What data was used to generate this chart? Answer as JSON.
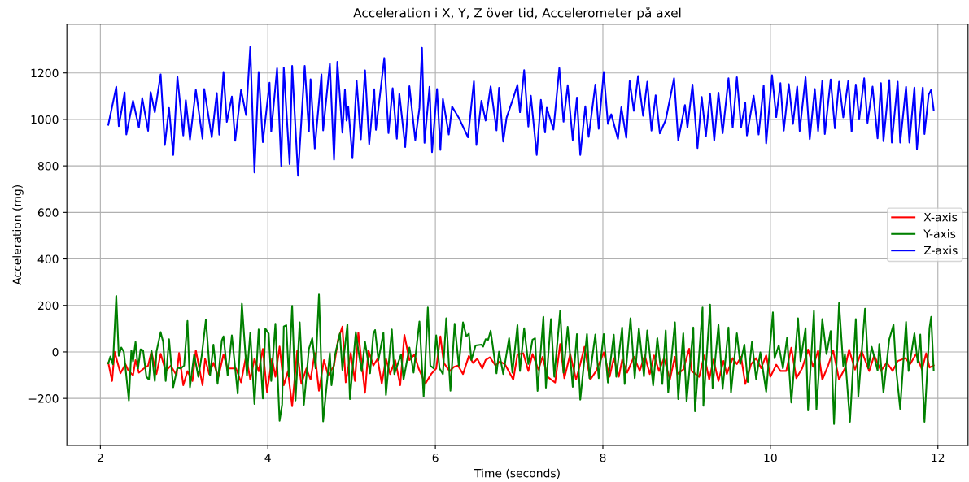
{
  "chart_data": {
    "type": "line",
    "title": "Acceleration i X, Y, Z över tid, Accelerometer på axel",
    "xlabel": "Time (seconds)",
    "ylabel": "Acceleration (mg)",
    "xlim": [
      1.6,
      12.36
    ],
    "ylim": [
      -402,
      1410
    ],
    "xticks": [
      2,
      4,
      6,
      8,
      10,
      12
    ],
    "yticks": [
      {
        "value": -200,
        "label": "−200"
      },
      0,
      200,
      400,
      600,
      800,
      1000,
      1200
    ],
    "grid": true,
    "legend": "right",
    "marker": "none",
    "line_style": "solid",
    "series": [
      {
        "name": "X-axis",
        "color": "#ff0000",
        "x": [
          2.095,
          2.14,
          2.17,
          2.24,
          2.3,
          2.33,
          2.39,
          2.42,
          2.46,
          2.52,
          2.57,
          2.61,
          2.67,
          2.72,
          2.78,
          2.84,
          2.91,
          2.94,
          2.99,
          3.04,
          3.1,
          3.14,
          3.22,
          3.25,
          3.3,
          3.35,
          3.41,
          3.47,
          3.52,
          3.62,
          3.68,
          3.74,
          3.79,
          3.84,
          3.89,
          3.94,
          3.99,
          4.05,
          4.09,
          4.14,
          4.19,
          4.24,
          4.29,
          4.35,
          4.4,
          4.46,
          4.51,
          4.56,
          4.61,
          4.67,
          4.72,
          4.79,
          4.84,
          4.89,
          4.93,
          4.99,
          5.04,
          5.08,
          5.16,
          5.2,
          5.26,
          5.31,
          5.36,
          5.41,
          5.46,
          5.52,
          5.58,
          5.63,
          5.69,
          5.75,
          5.8,
          5.88,
          5.95,
          6.01,
          6.06,
          6.1,
          6.17,
          6.22,
          6.27,
          6.33,
          6.4,
          6.45,
          6.5,
          6.56,
          6.6,
          6.65,
          6.72,
          6.77,
          6.83,
          6.93,
          6.98,
          7.05,
          7.11,
          7.16,
          7.23,
          7.28,
          7.34,
          7.43,
          7.49,
          7.54,
          7.61,
          7.68,
          7.73,
          7.78,
          7.85,
          7.92,
          8.01,
          8.08,
          8.13,
          8.19,
          8.23,
          8.29,
          8.37,
          8.44,
          8.5,
          8.56,
          8.61,
          8.67,
          8.73,
          8.8,
          8.86,
          8.89,
          8.96,
          9.03,
          9.06,
          9.15,
          9.21,
          9.27,
          9.32,
          9.38,
          9.44,
          9.48,
          9.55,
          9.6,
          9.65,
          9.7,
          9.77,
          9.83,
          9.89,
          9.95,
          10.0,
          10.07,
          10.12,
          10.19,
          10.25,
          10.31,
          10.38,
          10.45,
          10.51,
          10.57,
          10.62,
          10.69,
          10.75,
          10.82,
          10.89,
          10.94,
          11.01,
          11.09,
          11.18,
          11.24,
          11.32,
          11.39,
          11.46,
          11.52,
          11.61,
          11.67,
          11.74,
          11.81,
          11.86,
          11.9,
          11.95
        ],
        "values": [
          -47,
          -125,
          1,
          -92,
          -53,
          -77,
          -101,
          -35,
          -89,
          -71,
          -59,
          1,
          -95,
          -8,
          -83,
          -59,
          -101,
          -5,
          -143,
          -83,
          -125,
          7,
          -143,
          -29,
          -95,
          -47,
          -107,
          -11,
          -71,
          -71,
          -131,
          -17,
          -119,
          -29,
          -83,
          13,
          -173,
          -29,
          -107,
          23,
          -143,
          -83,
          -233,
          4,
          -137,
          -71,
          -119,
          -5,
          -167,
          -35,
          -101,
          -59,
          55,
          109,
          -131,
          -5,
          -125,
          83,
          -176,
          7,
          -59,
          -29,
          -137,
          -29,
          -95,
          -35,
          -143,
          73,
          -35,
          -11,
          -71,
          -137,
          -95,
          -71,
          67,
          -47,
          -83,
          -65,
          -59,
          -95,
          -17,
          -47,
          -29,
          -71,
          -35,
          -23,
          -59,
          -41,
          -53,
          -119,
          -11,
          -6,
          -82,
          -9,
          -76,
          -21,
          -107,
          -132,
          34,
          -113,
          -9,
          -119,
          -52,
          22,
          -119,
          -82,
          -2,
          -107,
          -27,
          -107,
          -33,
          -89,
          -21,
          -82,
          -15,
          -95,
          -15,
          -82,
          -27,
          -119,
          -21,
          -95,
          -76,
          14,
          -82,
          -107,
          -15,
          -119,
          -33,
          -125,
          -39,
          -95,
          -27,
          -52,
          -21,
          -138,
          -52,
          -27,
          -70,
          -15,
          -107,
          -55,
          -82,
          -82,
          18,
          -113,
          -70,
          10,
          -64,
          6,
          -119,
          -58,
          6,
          -119,
          -70,
          10,
          -76,
          4,
          -82,
          -15,
          -82,
          -46,
          -82,
          -39,
          -27,
          -52,
          -9,
          -76,
          -6,
          -67,
          -58
        ]
      },
      {
        "name": "Y-axis",
        "color": "#008000",
        "x": [
          2.095,
          2.12,
          2.15,
          2.19,
          2.22,
          2.25,
          2.28,
          2.34,
          2.37,
          2.39,
          2.42,
          2.45,
          2.48,
          2.51,
          2.55,
          2.58,
          2.61,
          2.65,
          2.67,
          2.72,
          2.75,
          2.78,
          2.82,
          2.87,
          2.92,
          2.96,
          3.0,
          3.04,
          3.07,
          3.12,
          3.17,
          3.21,
          3.26,
          3.31,
          3.35,
          3.4,
          3.45,
          3.47,
          3.52,
          3.57,
          3.64,
          3.69,
          3.75,
          3.79,
          3.84,
          3.89,
          3.94,
          3.97,
          4.01,
          4.04,
          4.09,
          4.14,
          4.17,
          4.19,
          4.22,
          4.25,
          4.29,
          4.33,
          4.38,
          4.43,
          4.49,
          4.53,
          4.57,
          4.61,
          4.66,
          4.74,
          4.76,
          4.8,
          4.86,
          4.89,
          4.95,
          4.98,
          5.05,
          5.08,
          5.12,
          5.16,
          5.22,
          5.26,
          5.28,
          5.32,
          5.38,
          5.41,
          5.48,
          5.51,
          5.59,
          5.62,
          5.69,
          5.74,
          5.81,
          5.86,
          5.91,
          5.94,
          5.98,
          6.01,
          6.05,
          6.09,
          6.13,
          6.18,
          6.23,
          6.28,
          6.33,
          6.37,
          6.4,
          6.43,
          6.48,
          6.55,
          6.57,
          6.6,
          6.63,
          6.66,
          6.73,
          6.76,
          6.81,
          6.88,
          6.92,
          6.98,
          7.01,
          7.06,
          7.11,
          7.16,
          7.19,
          7.22,
          7.29,
          7.32,
          7.38,
          7.42,
          7.49,
          7.53,
          7.58,
          7.64,
          7.69,
          7.73,
          7.81,
          7.84,
          7.91,
          7.95,
          8.01,
          8.06,
          8.13,
          8.16,
          8.23,
          8.26,
          8.33,
          8.38,
          8.43,
          8.49,
          8.53,
          8.6,
          8.65,
          8.71,
          8.75,
          8.78,
          8.86,
          8.9,
          8.96,
          9.0,
          9.08,
          9.1,
          9.19,
          9.2,
          9.28,
          9.31,
          9.38,
          9.43,
          9.5,
          9.53,
          9.6,
          9.64,
          9.69,
          9.73,
          9.78,
          9.83,
          9.88,
          9.95,
          10.03,
          10.05,
          10.1,
          10.15,
          10.2,
          10.25,
          10.33,
          10.36,
          10.42,
          10.45,
          10.52,
          10.55,
          10.62,
          10.67,
          10.72,
          10.76,
          10.82,
          10.87,
          10.89,
          10.95,
          11.02,
          11.05,
          11.13,
          11.17,
          11.21,
          11.28,
          11.3,
          11.35,
          11.42,
          11.47,
          11.5,
          11.55,
          11.62,
          11.65,
          11.72,
          11.76,
          11.79,
          11.84,
          11.9,
          11.92,
          11.95
        ],
        "values": [
          -49,
          -20,
          -53,
          241,
          -17,
          19,
          1,
          -209,
          7,
          -41,
          43,
          -71,
          11,
          7,
          -107,
          -119,
          7,
          -125,
          1,
          85,
          43,
          -125,
          55,
          -152,
          -68,
          -71,
          -59,
          133,
          -152,
          -11,
          -107,
          -17,
          139,
          -101,
          31,
          -137,
          49,
          67,
          -101,
          71,
          -179,
          208,
          -101,
          83,
          -224,
          97,
          -200,
          100,
          79,
          -125,
          121,
          -296,
          -227,
          109,
          115,
          -107,
          198,
          -209,
          127,
          -227,
          13,
          59,
          -71,
          247,
          -299,
          -5,
          -143,
          -17,
          79,
          -77,
          119,
          -203,
          85,
          7,
          -83,
          43,
          -92,
          79,
          94,
          -35,
          83,
          -185,
          97,
          -95,
          -11,
          -119,
          19,
          -89,
          131,
          -191,
          191,
          -59,
          -71,
          71,
          -71,
          -95,
          145,
          -167,
          121,
          -59,
          127,
          67,
          79,
          -35,
          28,
          31,
          23,
          55,
          52,
          91,
          -92,
          1,
          -95,
          59,
          -89,
          115,
          -82,
          102,
          -52,
          53,
          59,
          -168,
          151,
          -154,
          141,
          -107,
          178,
          -89,
          108,
          -150,
          77,
          -205,
          77,
          -113,
          75,
          -113,
          77,
          -132,
          74,
          -107,
          105,
          -138,
          145,
          -113,
          102,
          -105,
          92,
          -144,
          59,
          -138,
          92,
          -175,
          127,
          -203,
          80,
          -212,
          105,
          -255,
          191,
          -232,
          203,
          -156,
          117,
          -159,
          105,
          -175,
          80,
          -52,
          31,
          -129,
          43,
          -117,
          -2,
          -171,
          170,
          -27,
          28,
          -70,
          62,
          -218,
          145,
          -39,
          102,
          -252,
          176,
          -248,
          141,
          -9,
          90,
          -310,
          210,
          -60,
          -9,
          -301,
          141,
          -193,
          186,
          -70,
          22,
          -80,
          34,
          -175,
          55,
          117,
          -70,
          -245,
          129,
          -82,
          80,
          -46,
          75,
          -301,
          102,
          151,
          -80
        ]
      },
      {
        "name": "Z-axis",
        "color": "#0000ff",
        "x": [
          2.095,
          2.19,
          2.22,
          2.29,
          2.31,
          2.39,
          2.46,
          2.5,
          2.57,
          2.6,
          2.65,
          2.72,
          2.77,
          2.82,
          2.87,
          2.92,
          2.99,
          3.02,
          3.07,
          3.14,
          3.22,
          3.24,
          3.33,
          3.39,
          3.42,
          3.47,
          3.51,
          3.57,
          3.61,
          3.68,
          3.74,
          3.79,
          3.84,
          3.89,
          3.94,
          4.02,
          4.04,
          4.11,
          4.16,
          4.19,
          4.26,
          4.29,
          4.36,
          4.44,
          4.49,
          4.51,
          4.56,
          4.64,
          4.66,
          4.74,
          4.79,
          4.83,
          4.89,
          4.92,
          4.94,
          4.96,
          5.01,
          5.06,
          5.11,
          5.16,
          5.21,
          5.27,
          5.29,
          5.39,
          5.44,
          5.49,
          5.54,
          5.57,
          5.64,
          5.69,
          5.76,
          5.81,
          5.84,
          5.87,
          5.93,
          5.96,
          6.02,
          6.06,
          6.09,
          6.16,
          6.2,
          6.28,
          6.39,
          6.46,
          6.49,
          6.55,
          6.6,
          6.66,
          6.73,
          6.76,
          6.81,
          6.85,
          6.93,
          6.98,
          7.01,
          7.06,
          7.11,
          7.14,
          7.21,
          7.26,
          7.31,
          7.33,
          7.41,
          7.48,
          7.53,
          7.58,
          7.64,
          7.69,
          7.73,
          7.79,
          7.83,
          7.91,
          7.95,
          8.01,
          8.06,
          8.1,
          8.18,
          8.22,
          8.28,
          8.32,
          8.37,
          8.42,
          8.48,
          8.53,
          8.58,
          8.63,
          8.68,
          8.75,
          8.85,
          8.9,
          8.98,
          9.01,
          9.07,
          9.13,
          9.18,
          9.23,
          9.28,
          9.33,
          9.38,
          9.43,
          9.5,
          9.55,
          9.6,
          9.65,
          9.7,
          9.72,
          9.8,
          9.86,
          9.92,
          9.95,
          10.02,
          10.07,
          10.12,
          10.16,
          10.22,
          10.27,
          10.32,
          10.35,
          10.42,
          10.47,
          10.53,
          10.57,
          10.62,
          10.65,
          10.72,
          10.77,
          10.82,
          10.87,
          10.93,
          10.97,
          11.02,
          11.06,
          11.12,
          11.16,
          11.22,
          11.28,
          11.32,
          11.35,
          11.42,
          11.45,
          11.52,
          11.55,
          11.62,
          11.66,
          11.72,
          11.75,
          11.82,
          11.84,
          11.89,
          11.92,
          11.95
        ],
        "values": [
          977,
          1140,
          971,
          1116,
          935,
          1080,
          965,
          1092,
          951,
          1118,
          1031,
          1194,
          890,
          1049,
          847,
          1184,
          931,
          1083,
          914,
          1127,
          917,
          1131,
          923,
          1113,
          934,
          1204,
          989,
          1098,
          908,
          1127,
          1019,
          1312,
          772,
          1204,
          902,
          1158,
          947,
          1220,
          800,
          1223,
          808,
          1230,
          758,
          1230,
          947,
          1173,
          875,
          1194,
          953,
          1240,
          827,
          1248,
          943,
          1128,
          995,
          1055,
          833,
          1166,
          914,
          1211,
          893,
          1130,
          955,
          1264,
          941,
          1134,
          917,
          1110,
          881,
          1143,
          911,
          1049,
          1308,
          899,
          1140,
          859,
          1131,
          869,
          1088,
          935,
          1055,
          1007,
          923,
          1164,
          890,
          1080,
          995,
          1142,
          953,
          1136,
          905,
          1007,
          1092,
          1148,
          1031,
          1212,
          969,
          1102,
          847,
          1084,
          944,
          1050,
          956,
          1221,
          990,
          1147,
          912,
          1094,
          847,
          1056,
          925,
          1150,
          960,
          1204,
          981,
          1022,
          916,
          1052,
          921,
          1165,
          1037,
          1187,
          1016,
          1162,
          952,
          1104,
          940,
          997,
          1177,
          910,
          1062,
          965,
          1150,
          877,
          1097,
          927,
          1110,
          909,
          1115,
          941,
          1177,
          965,
          1181,
          965,
          1072,
          931,
          1102,
          935,
          1146,
          897,
          1190,
          1010,
          1156,
          952,
          1152,
          981,
          1141,
          950,
          1181,
          915,
          1131,
          950,
          1166,
          937,
          1172,
          962,
          1162,
          1009,
          1166,
          947,
          1150,
          1000,
          1177,
          985,
          1141,
          919,
          1156,
          906,
          1169,
          900,
          1162,
          900,
          1140,
          900,
          1137,
          872,
          1137,
          937,
          1106,
          1127,
          1040
        ]
      }
    ]
  }
}
